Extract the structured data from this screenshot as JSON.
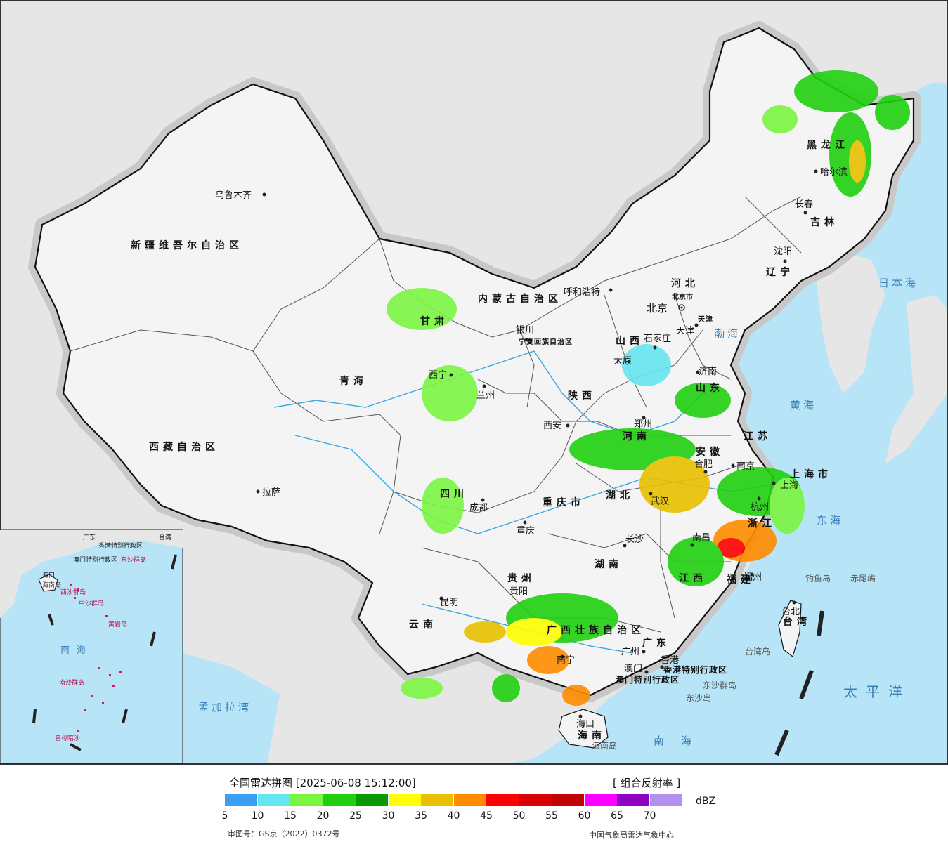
{
  "colors": {
    "sea": "#b8e4f7",
    "land_china": "#f4f4f4",
    "land_other": "#e6e6e6",
    "border": "#111111",
    "river": "#3fa6e0"
  },
  "provinces": [
    {
      "name": "新疆维吾尔自治区"
    },
    {
      "name": "西藏自治区"
    },
    {
      "name": "青海"
    },
    {
      "name": "甘肃"
    },
    {
      "name": "内蒙古自治区"
    },
    {
      "name": "黑龙江"
    },
    {
      "name": "吉林"
    },
    {
      "name": "辽宁"
    },
    {
      "name": "河北"
    },
    {
      "name": "山西"
    },
    {
      "name": "山东"
    },
    {
      "name": "河南"
    },
    {
      "name": "陕西"
    },
    {
      "name": "四川"
    },
    {
      "name": "重庆市"
    },
    {
      "name": "湖北"
    },
    {
      "name": "湖南"
    },
    {
      "name": "安徽"
    },
    {
      "name": "江苏"
    },
    {
      "name": "浙江"
    },
    {
      "name": "江西"
    },
    {
      "name": "福建"
    },
    {
      "name": "贵州"
    },
    {
      "name": "云南"
    },
    {
      "name": "广西壮族自治区"
    },
    {
      "name": "广东"
    },
    {
      "name": "海南"
    },
    {
      "name": "台湾"
    },
    {
      "name": "宁夏回族自治区"
    },
    {
      "name": "上海市"
    },
    {
      "name": "天津"
    },
    {
      "name": "北京市"
    },
    {
      "name": "香港特别行政区"
    },
    {
      "name": "澳门特别行政区"
    }
  ],
  "cities": [
    {
      "name": "乌鲁木齐"
    },
    {
      "name": "拉萨"
    },
    {
      "name": "西宁"
    },
    {
      "name": "兰州"
    },
    {
      "name": "银川"
    },
    {
      "name": "呼和浩特"
    },
    {
      "name": "哈尔滨"
    },
    {
      "name": "长春"
    },
    {
      "name": "沈阳"
    },
    {
      "name": "北京"
    },
    {
      "name": "天津"
    },
    {
      "name": "石家庄"
    },
    {
      "name": "太原"
    },
    {
      "name": "济南"
    },
    {
      "name": "郑州"
    },
    {
      "name": "西安"
    },
    {
      "name": "成都"
    },
    {
      "name": "重庆"
    },
    {
      "name": "武汉"
    },
    {
      "name": "长沙"
    },
    {
      "name": "合肥"
    },
    {
      "name": "南京"
    },
    {
      "name": "上海"
    },
    {
      "name": "杭州"
    },
    {
      "name": "南昌"
    },
    {
      "name": "福州"
    },
    {
      "name": "台北"
    },
    {
      "name": "贵阳"
    },
    {
      "name": "昆明"
    },
    {
      "name": "南宁"
    },
    {
      "name": "广州"
    },
    {
      "name": "香港"
    },
    {
      "name": "澳门"
    },
    {
      "name": "海口"
    }
  ],
  "seas": [
    {
      "name": "日本海"
    },
    {
      "name": "渤海"
    },
    {
      "name": "黄海"
    },
    {
      "name": "东海"
    },
    {
      "name": "太平洋"
    },
    {
      "name": "南海"
    },
    {
      "name": "孟加拉湾"
    }
  ],
  "islands": [
    {
      "name": "钓鱼岛"
    },
    {
      "name": "赤尾屿"
    },
    {
      "name": "台湾岛"
    },
    {
      "name": "东沙群岛"
    },
    {
      "name": "东沙岛"
    },
    {
      "name": "海南岛"
    }
  ],
  "inset": {
    "labels": [
      "香港特别行政区",
      "澳门特别行政区",
      "东沙群岛",
      "海南岛",
      "西沙群岛",
      "中沙群岛",
      "黄岩岛",
      "南沙群岛",
      "曾母暗沙",
      "南海",
      "台湾",
      "广东",
      "海口"
    ]
  },
  "legend": {
    "title": "全国雷达拼图 [2025-06-08 15:12:00]",
    "product": "[ 组合反射率 ]",
    "unit": "dBZ",
    "ticks": [
      "5",
      "10",
      "15",
      "20",
      "25",
      "30",
      "35",
      "40",
      "45",
      "50",
      "55",
      "60",
      "65",
      "70"
    ],
    "swatches": [
      "#3d9ef5",
      "#66e6f0",
      "#7bf542",
      "#20d010",
      "#0a9a00",
      "#ffff00",
      "#e8c000",
      "#ff8c00",
      "#ff0000",
      "#d80000",
      "#c00000",
      "#ff00ff",
      "#9000c0",
      "#b090f0"
    ],
    "review_number": "审图号：GS京（2022）0372号",
    "center": "中国气象局雷达气象中心"
  }
}
